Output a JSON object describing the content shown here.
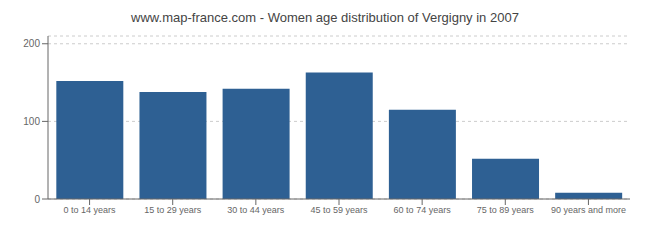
{
  "chart_data": {
    "type": "bar",
    "title": "www.map-france.com - Women age distribution of Vergigny in 2007",
    "categories": [
      "0 to 14 years",
      "15 to 29 years",
      "30 to 44 years",
      "45 to 59 years",
      "60 to 74 years",
      "75 to 89 years",
      "90 years and more"
    ],
    "values": [
      152,
      138,
      142,
      163,
      115,
      52,
      8
    ],
    "color": "#2e6093",
    "ylim": [
      0,
      210
    ],
    "yticks": [
      0,
      100,
      200
    ],
    "grid": true
  }
}
